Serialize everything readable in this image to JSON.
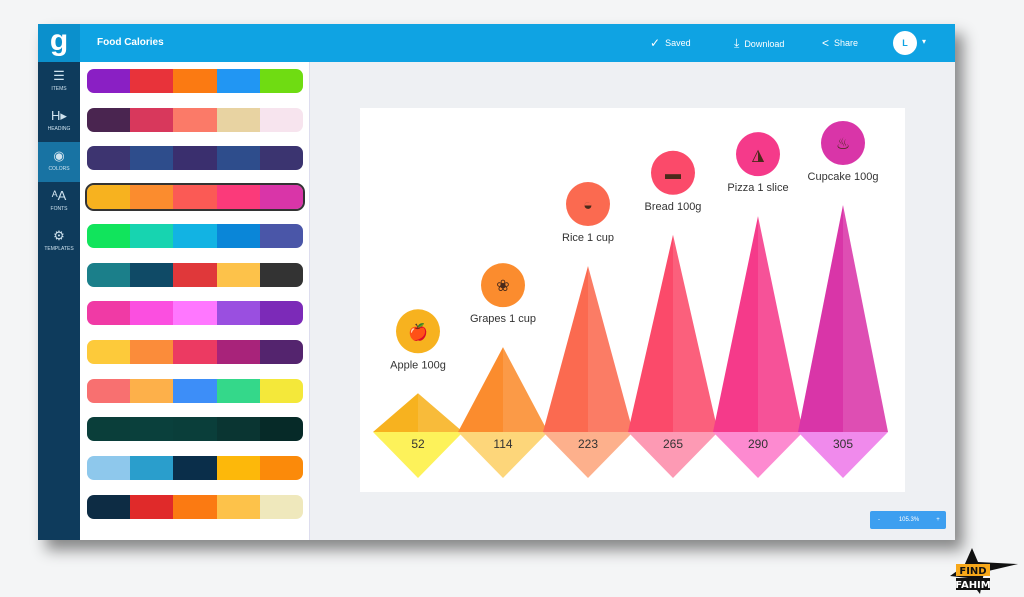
{
  "app": {
    "title": "Food Calories",
    "logo": "g"
  },
  "header": {
    "saved": "Saved",
    "download": "Download",
    "share": "Share",
    "avatar": "L"
  },
  "sidebar": {
    "items": [
      {
        "label": "ITEMS",
        "icon": "list-icon"
      },
      {
        "label": "HEADING",
        "icon": "heading-icon"
      },
      {
        "label": "COLORS",
        "icon": "palette-icon",
        "active": true
      },
      {
        "label": "FONTS",
        "icon": "fonts-icon"
      },
      {
        "label": "TEMPLATES",
        "icon": "templates-icon"
      }
    ]
  },
  "palettes": [
    [
      "#8a1fc4",
      "#e8333a",
      "#fb7a12",
      "#2196f3",
      "#6fdc12"
    ],
    [
      "#4a2550",
      "#d8385c",
      "#fb7a68",
      "#e8d3a2",
      "#f7e4ee"
    ],
    [
      "#3d3470",
      "#2e4d8c",
      "#3a2f6e",
      "#2e4d8c",
      "#3b3470"
    ],
    [
      "#f7b21f",
      "#fb8c2e",
      "#fb5a55",
      "#fb3a7a",
      "#d935a8"
    ],
    [
      "#11e45c",
      "#17d4b0",
      "#12b3e3",
      "#0a86d8",
      "#4a56a8"
    ],
    [
      "#1b7f8a",
      "#0f4a66",
      "#e0383a",
      "#fdc24a",
      "#333333"
    ],
    [
      "#f03aa5",
      "#fb4fe0",
      "#ff77ff",
      "#9a4fe0",
      "#7c2ab8"
    ],
    [
      "#fdca3a",
      "#fb8c3a",
      "#ec3a62",
      "#a8237a",
      "#54246e"
    ],
    [
      "#f87070",
      "#fdb04a",
      "#3d8ef8",
      "#34d88a",
      "#f4e83a"
    ],
    [
      "#0a3e3a",
      "#0a403c",
      "#0a3e3a",
      "#0a3532",
      "#062a28"
    ],
    [
      "#8ec8ec",
      "#2a9ecc",
      "#0a2e4a",
      "#fdb80a",
      "#fb8a0a"
    ],
    [
      "#0d2c44",
      "#e02a2a",
      "#fb7a12",
      "#fdc24a",
      "#efe8bc"
    ]
  ],
  "selected_palette": 3,
  "zoom": {
    "minus": "-",
    "value": "105.3%",
    "plus": "+"
  },
  "watermark": "FIND FAHIM",
  "chart_data": {
    "type": "bar",
    "categories": [
      "Apple 100g",
      "Grapes 1 cup",
      "Rice 1 cup",
      "Bread 100g",
      "Pizza 1 slice",
      "Cupcake 100g"
    ],
    "values": [
      52,
      114,
      223,
      265,
      290,
      305
    ],
    "icons": [
      "apple-icon",
      "grapes-icon",
      "rice-bowl-icon",
      "bread-icon",
      "pizza-icon",
      "cupcake-icon"
    ],
    "colors": [
      "#f7b21f",
      "#fb8c2e",
      "#fb6a50",
      "#fb4a6a",
      "#f53a8a",
      "#d935a8"
    ],
    "light_colors": [
      "#fdf25a",
      "#fdd67a",
      "#fdb08c",
      "#fd9ab4",
      "#fd8ad0",
      "#f08aec"
    ],
    "ylim": [
      0,
      305
    ]
  }
}
